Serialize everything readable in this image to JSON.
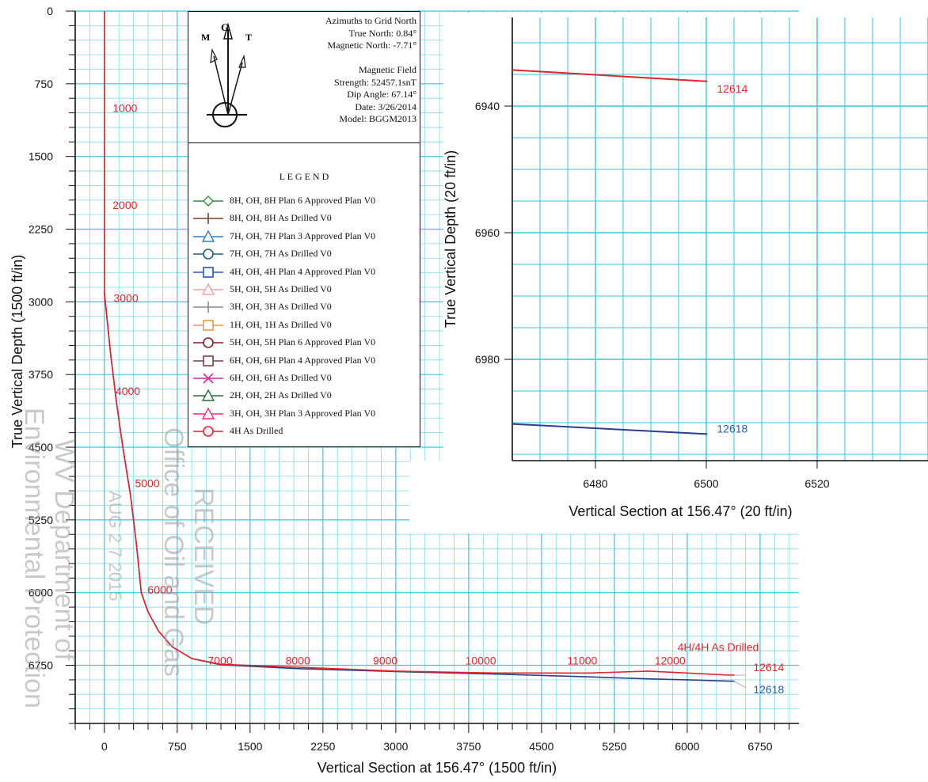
{
  "colors": {
    "grid_major": "#36c6e6",
    "grid_minor": "#7fd9ee",
    "drilled_4h": "#e0242b",
    "drilled_5h": "#2b3f8f",
    "label_red": "#e0242b",
    "label_blue": "#1c5fb0"
  },
  "chart_data": [
    {
      "type": "line",
      "ylabel": "True Vertical Depth (1500 ft/in)",
      "xlabel": "Vertical Section at 156.47° (1500 ft/in)",
      "x_ticks": [
        "0",
        "750",
        "1500",
        "2250",
        "3000",
        "3750",
        "4500",
        "5250",
        "6000",
        "6750"
      ],
      "y_ticks": [
        "0",
        "750",
        "1500",
        "2250",
        "3000",
        "3750",
        "4500",
        "5250",
        "6000",
        "6750"
      ],
      "xlim": [
        -300,
        7150
      ],
      "ylim": [
        0,
        7350
      ],
      "y_inverted": true,
      "grid": true,
      "series": [
        {
          "x": [
            0,
            0,
            0,
            0,
            20,
            60,
            120,
            190,
            270,
            330,
            380,
            450,
            560,
            700,
            900,
            1200,
            2000,
            3000,
            4000,
            5000,
            5600,
            6000,
            6400,
            6486
          ],
          "y": [
            0,
            1000,
            2000,
            2900,
            3100,
            3500,
            4000,
            4500,
            5000,
            5500,
            6000,
            6200,
            6400,
            6560,
            6680,
            6740,
            6770,
            6810,
            6830,
            6830,
            6810,
            6830,
            6850,
            6852
          ]
        },
        {
          "x": [
            0,
            0,
            0,
            0,
            20,
            60,
            120,
            190,
            270,
            330,
            380,
            450,
            560,
            700,
            900,
            1200,
            2000,
            3000,
            4000,
            5000,
            5600,
            6000,
            6400,
            6486
          ],
          "y": [
            0,
            1000,
            2000,
            2900,
            3100,
            3500,
            4000,
            4500,
            5000,
            5500,
            6000,
            6200,
            6400,
            6560,
            6680,
            6745,
            6785,
            6815,
            6840,
            6870,
            6890,
            6900,
            6912,
            6915
          ]
        }
      ],
      "md_labels": [
        "1000",
        "2000",
        "3000",
        "4000",
        "5000",
        "6000",
        "7000",
        "8000",
        "9000",
        "10000",
        "11000",
        "12000"
      ],
      "md_label_positions": [
        [
          20,
          1000
        ],
        [
          20,
          2000
        ],
        [
          30,
          2960
        ],
        [
          50,
          3920
        ],
        [
          250,
          4870
        ],
        [
          380,
          5970
        ],
        [
          1000,
          6700
        ],
        [
          1800,
          6700
        ],
        [
          2700,
          6700
        ],
        [
          3650,
          6700
        ],
        [
          4700,
          6700
        ],
        [
          5600,
          6700
        ]
      ],
      "end_labels": [
        {
          "text": "4H/4H As Drilled",
          "x": 5900,
          "y": 6560
        },
        {
          "text": "12614",
          "x": 6680,
          "y": 6770
        },
        {
          "text": "12618",
          "x": 6680,
          "y": 7000
        }
      ]
    },
    {
      "type": "line",
      "ylabel": "True Vertical Depth (20 ft/in)",
      "xlabel": "Vertical Section at 156.47° (20 ft/in)",
      "x_ticks": [
        "6480",
        "6500",
        "6520"
      ],
      "y_ticks": [
        "6940",
        "6960",
        "6980"
      ],
      "xlim": [
        6465,
        6540
      ],
      "ylim": [
        6926,
        6996
      ],
      "y_inverted": true,
      "grid": true,
      "series": [
        {
          "x": [
            6465,
            6500.2
          ],
          "y": [
            6934.3,
            6936.1
          ],
          "end_label": "12614"
        },
        {
          "x": [
            6465,
            6500.2
          ],
          "y": [
            6990.2,
            6991.8
          ],
          "end_label": "12618"
        }
      ]
    }
  ],
  "north_box": {
    "g_label": "G",
    "m_label": "M",
    "t_label": "T",
    "lines": [
      "Azimuths to Grid North",
      "True North: 0.84°",
      "Magnetic North: -7.71°",
      "",
      "Magnetic Field",
      "Strength: 52457.1snT",
      "Dip Angle: 67.14°",
      "Date: 3/26/2014",
      "Model: BGGM2013"
    ]
  },
  "legend": {
    "title": "L E G E N D",
    "items": [
      {
        "label": "8H, OH, 8H Plan 6 Approved Plan V0",
        "color": "#2f8f3a",
        "marker": "diamond"
      },
      {
        "label": "8H, OH, 8H As Drilled V0",
        "color": "#7a3f36",
        "marker": "plus"
      },
      {
        "label": "7H, OH, 7H Plan 3 Approved Plan V0",
        "color": "#2f7fc6",
        "marker": "triangle"
      },
      {
        "label": "7H, OH, 7H As Drilled V0",
        "color": "#1f5f6f",
        "marker": "circle"
      },
      {
        "label": "4H, OH, 4H Plan 4 Approved Plan V0",
        "color": "#2a56b8",
        "marker": "square"
      },
      {
        "label": "5H, OH, 5H As Drilled V0",
        "color": "#f0a0a8",
        "marker": "triangle"
      },
      {
        "label": "3H, OH, 3H As Drilled V0",
        "color": "#8a8a8a",
        "marker": "plus"
      },
      {
        "label": "1H, OH, 1H As Drilled V0",
        "color": "#ef9a3a",
        "marker": "square"
      },
      {
        "label": "5H, OH, 5H Plan 6 Approved Plan V0",
        "color": "#7a1f2a",
        "marker": "circle"
      },
      {
        "label": "6H, OH, 6H Plan 4 Approved Plan V0",
        "color": "#7a3f45",
        "marker": "square"
      },
      {
        "label": "6H, OH, 6H As Drilled V0",
        "color": "#d02fa0",
        "marker": "x"
      },
      {
        "label": "2H, OH, 2H As Drilled V0",
        "color": "#2d6a3a",
        "marker": "triangle"
      },
      {
        "label": "3H, OH, 3H Plan 3 Approved Plan V0",
        "color": "#e0307a",
        "marker": "triangle"
      },
      {
        "label": "4H As Drilled",
        "color": "#e0242b",
        "marker": "circle"
      }
    ]
  },
  "stamp": {
    "received": "RECEIVED",
    "office": "Office of Oil and Gas",
    "date": "AUG 2 7 2015",
    "dept1": "WV Department of",
    "dept2": "Environmental Protection"
  }
}
